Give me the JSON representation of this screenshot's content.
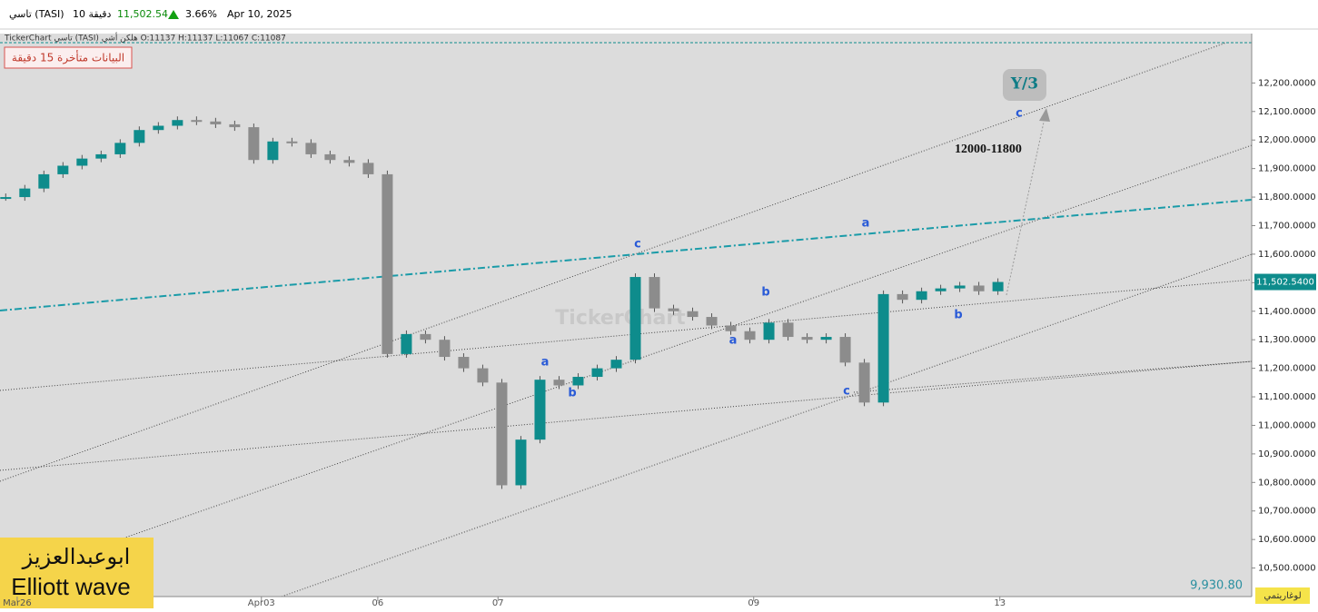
{
  "header": {
    "symbol": "تاسي (TASI)",
    "interval": "10 دقيقة",
    "price": "11,502.54",
    "change": "3.66%",
    "date": "Apr 10, 2025"
  },
  "info_bar": "TickerChart تاسي (TASI) هلكن أشي  O:11137  H:11137  L:11067  C:11087",
  "delay_notice": "البيانات متأخرة 15 دقيقة",
  "watermark": "TickerChart",
  "target_box": "Y/3",
  "target_range": "12000-11800",
  "waves": [
    "a",
    "b",
    "c",
    "a",
    "b",
    "c",
    "a",
    "b",
    "c"
  ],
  "signature": {
    "name": "ابوعبدالعزيز",
    "subtitle": "Elliott wave"
  },
  "bottom_value": "9,930.80",
  "scale_button": "لوغاريتمي",
  "chart_data": {
    "type": "candlestick",
    "series": [
      {
        "name": "TASI",
        "up_color": "#0e8c8c",
        "down_color": "#8c8c8c",
        "values": [
          11800,
          11830,
          11880,
          11910,
          11935,
          11950,
          11990,
          12035,
          12050,
          12070,
          12065,
          12055,
          12045,
          11930,
          11995,
          11990,
          11950,
          11930,
          11920,
          11880,
          11250,
          11320,
          11300,
          11240,
          11200,
          11150,
          10790,
          10950,
          11160,
          11140,
          11170,
          11200,
          11230,
          11520,
          11410,
          11400,
          11380,
          11350,
          11330,
          11300,
          11360,
          11310,
          11300,
          11310,
          11220,
          11080,
          11460,
          11440,
          11470,
          11480,
          11490,
          11470,
          11502.54
        ]
      }
    ],
    "price_tag": {
      "value": 11502.54,
      "label": "11,502.5400"
    },
    "xlim": [
      -0.3,
      65.3
    ],
    "xticks": [
      {
        "value": 0.6,
        "label": "Mar26"
      },
      {
        "value": 13.4,
        "label": "Apr03"
      },
      {
        "value": 19.5,
        "label": "06"
      },
      {
        "value": 25.8,
        "label": "07"
      },
      {
        "value": 39.2,
        "label": "09"
      },
      {
        "value": 52.1,
        "label": "13"
      }
    ],
    "ylim": [
      10400,
      12373
    ],
    "yticks": [
      {
        "value": 12200,
        "label": "12,200.0000"
      },
      {
        "value": 12100,
        "label": "12,100.0000"
      },
      {
        "value": 12000,
        "label": "12,000.0000"
      },
      {
        "value": 11900,
        "label": "11,900.0000"
      },
      {
        "value": 11800,
        "label": "11,800.0000"
      },
      {
        "value": 11700,
        "label": "11,700.0000"
      },
      {
        "value": 11600,
        "label": "11,600.0000"
      },
      {
        "value": 11500,
        "label": "11,500.0000"
      },
      {
        "value": 11400,
        "label": "11,400.0000"
      },
      {
        "value": 11300,
        "label": "11,300.0000"
      },
      {
        "value": 11200,
        "label": "11,200.0000"
      },
      {
        "value": 11100,
        "label": "11,100.0000"
      },
      {
        "value": 11000,
        "label": "11,000.0000"
      },
      {
        "value": 10900,
        "label": "10,900.0000"
      },
      {
        "value": 10800,
        "label": "10,800.0000"
      },
      {
        "value": 10700,
        "label": "10,700.0000"
      },
      {
        "value": 10600,
        "label": "10,600.0000"
      },
      {
        "value": 10500,
        "label": "10,500.0000"
      }
    ]
  }
}
